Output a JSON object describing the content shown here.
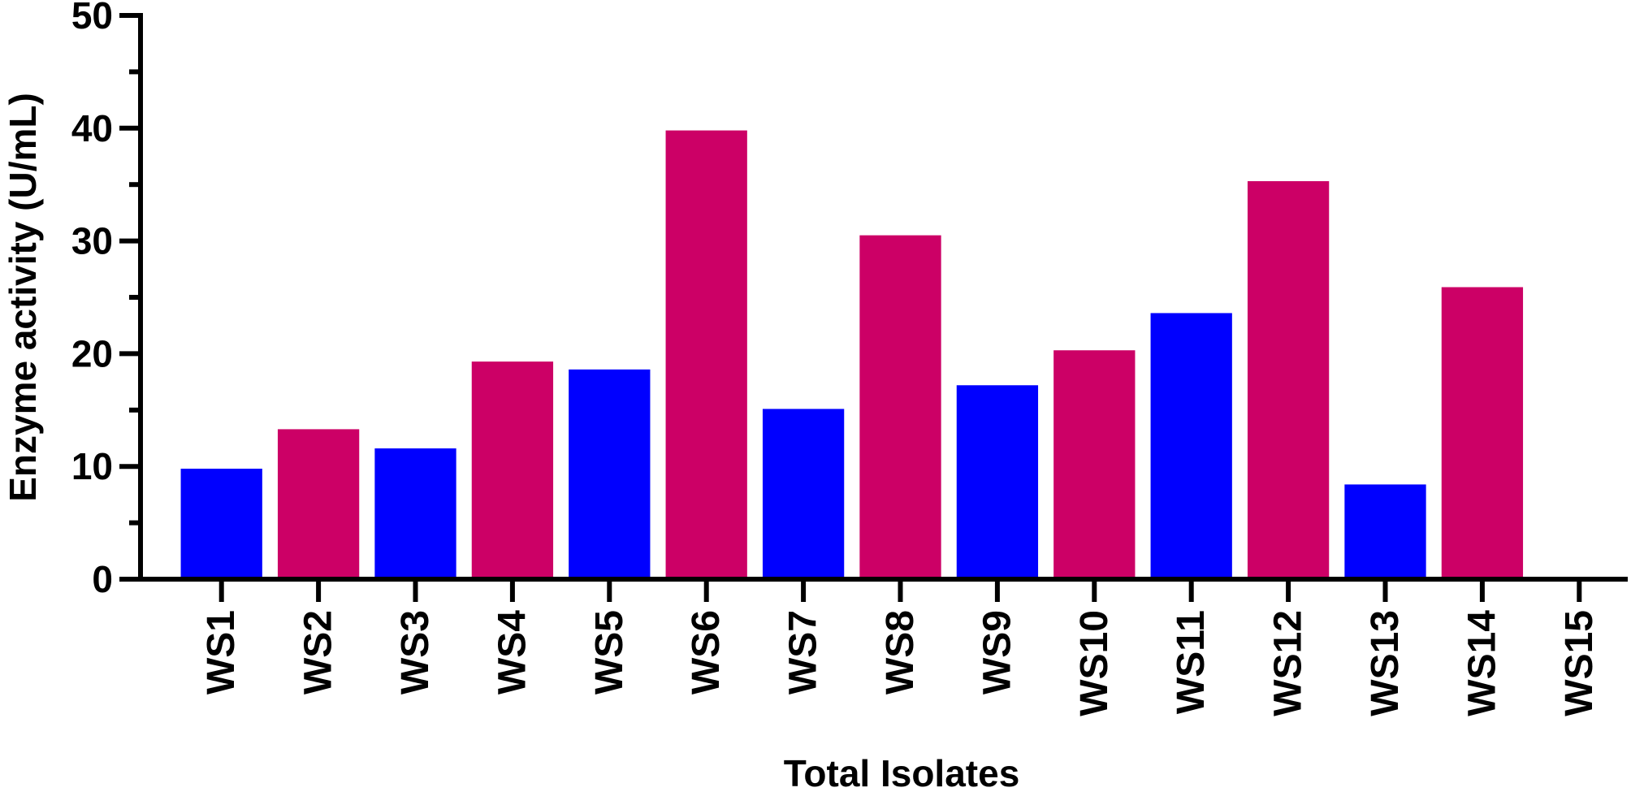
{
  "chart_data": {
    "type": "bar",
    "x_label": "Total Isolates",
    "y_label": "Enzyme activity (U/mL)",
    "categories": [
      "WS1",
      "WS2",
      "WS3",
      "WS4",
      "WS5",
      "WS6",
      "WS7",
      "WS8",
      "WS9",
      "WS10",
      "WS11",
      "WS12",
      "WS13",
      "WS14",
      "WS15"
    ],
    "values": [
      9.8,
      13.3,
      11.6,
      19.3,
      18.6,
      39.8,
      15.1,
      30.5,
      17.2,
      20.3,
      23.6,
      35.3,
      8.4,
      25.9,
      0
    ],
    "colors": [
      "#0000ff",
      "#cc0066",
      "#0000ff",
      "#cc0066",
      "#0000ff",
      "#cc0066",
      "#0000ff",
      "#cc0066",
      "#0000ff",
      "#cc0066",
      "#0000ff",
      "#cc0066",
      "#0000ff",
      "#cc0066",
      "#0000ff"
    ],
    "ylim": [
      0,
      50
    ],
    "yticks": [
      0,
      10,
      20,
      30,
      40,
      50
    ],
    "yminor_ticks": [
      5,
      15,
      25,
      35,
      45
    ],
    "grid": false
  }
}
